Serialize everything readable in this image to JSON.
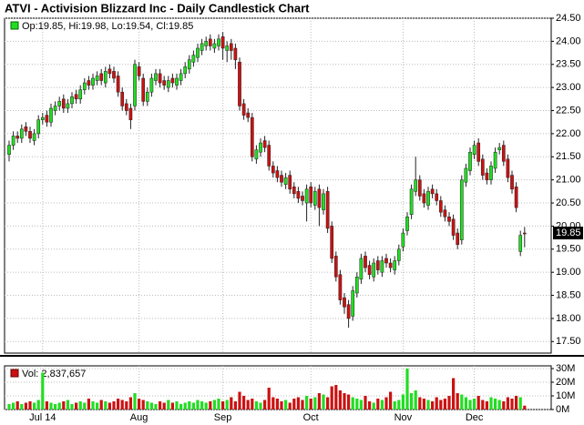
{
  "chart_data": {
    "type": "candlestick",
    "title": "ATVI - Activision Blizzard Inc - Daily Candlestick Chart",
    "legend": "Op:19.85, Hi:19.98, Lo:19.54, Cl:19.85",
    "up_color": "#22dd22",
    "down_color": "#cc1111",
    "grid": true,
    "categories": [
      null,
      null,
      null,
      null,
      null,
      null,
      null,
      null,
      "Jul 14",
      null,
      null,
      null,
      null,
      null,
      null,
      null,
      null,
      null,
      null,
      null,
      null,
      null,
      null,
      null,
      null,
      null,
      null,
      null,
      null,
      null,
      null,
      "Aug",
      null,
      null,
      null,
      null,
      null,
      null,
      null,
      null,
      null,
      null,
      null,
      null,
      null,
      null,
      null,
      null,
      null,
      null,
      null,
      "Sep",
      null,
      null,
      null,
      null,
      null,
      null,
      null,
      null,
      null,
      null,
      null,
      null,
      null,
      null,
      null,
      null,
      null,
      null,
      null,
      null,
      "Oct",
      null,
      null,
      null,
      null,
      null,
      null,
      null,
      null,
      null,
      null,
      null,
      null,
      null,
      null,
      null,
      null,
      null,
      null,
      null,
      null,
      null,
      "Nov",
      null,
      null,
      null,
      null,
      null,
      null,
      null,
      null,
      null,
      null,
      null,
      null,
      null,
      null,
      null,
      null,
      "Dec",
      null,
      null,
      null,
      null,
      null,
      null,
      null,
      null,
      null,
      null,
      null,
      null
    ],
    "open": [
      21.55,
      21.75,
      21.95,
      21.9,
      22.15,
      22.05,
      21.85,
      22.0,
      22.3,
      22.4,
      22.25,
      22.5,
      22.6,
      22.75,
      22.55,
      22.65,
      22.85,
      22.75,
      22.95,
      23.15,
      23.05,
      23.15,
      23.3,
      23.1,
      23.4,
      23.35,
      23.25,
      22.9,
      22.65,
      22.55,
      22.6,
      23.45,
      23.2,
      22.7,
      22.9,
      23.15,
      23.3,
      23.15,
      23.0,
      23.2,
      23.05,
      23.15,
      23.3,
      23.4,
      23.55,
      23.65,
      23.8,
      23.9,
      24.05,
      23.85,
      23.9,
      24.1,
      23.8,
      23.95,
      23.85,
      23.55,
      22.65,
      22.45,
      22.35,
      21.45,
      21.6,
      21.85,
      21.75,
      21.3,
      21.2,
      21.1,
      20.9,
      21.1,
      20.85,
      20.75,
      20.65,
      20.5,
      20.85,
      20.45,
      20.8,
      20.35,
      20.75,
      20.0,
      19.35,
      18.95,
      18.45,
      18.3,
      18.05,
      18.55,
      18.85,
      19.35,
      19.15,
      18.9,
      19.25,
      19.0,
      19.3,
      19.2,
      19.05,
      19.25,
      19.55,
      19.9,
      20.25,
      20.75,
      21.0,
      20.7,
      20.45,
      20.8,
      20.7,
      20.55,
      20.35,
      20.2,
      20.15,
      19.85,
      19.7,
      20.95,
      21.2,
      21.55,
      21.8,
      21.45,
      21.15,
      21.0,
      21.25,
      21.65,
      21.75,
      21.45,
      21.1,
      20.85,
      19.45,
      19.85
    ],
    "high": [
      21.85,
      22.05,
      22.05,
      22.2,
      22.25,
      22.15,
      22.1,
      22.4,
      22.45,
      22.5,
      22.65,
      22.7,
      22.8,
      22.85,
      22.75,
      22.9,
      22.95,
      23.05,
      23.2,
      23.25,
      23.3,
      23.35,
      23.4,
      23.45,
      23.5,
      23.45,
      23.35,
      23.0,
      22.75,
      22.65,
      23.6,
      23.55,
      23.3,
      23.0,
      23.3,
      23.4,
      23.4,
      23.25,
      23.25,
      23.3,
      23.3,
      23.4,
      23.55,
      23.7,
      23.8,
      23.95,
      24.05,
      24.1,
      24.15,
      24.05,
      24.15,
      24.2,
      24.0,
      24.05,
      23.95,
      23.65,
      22.75,
      22.55,
      22.45,
      21.75,
      21.9,
      21.95,
      21.85,
      21.4,
      21.3,
      21.2,
      21.15,
      21.2,
      20.95,
      20.85,
      20.75,
      20.9,
      20.95,
      20.85,
      20.9,
      20.8,
      20.85,
      20.1,
      19.45,
      19.05,
      18.55,
      18.4,
      18.7,
      19.0,
      19.4,
      19.45,
      19.25,
      19.3,
      19.35,
      19.35,
      19.4,
      19.3,
      19.35,
      19.6,
      19.95,
      20.3,
      20.9,
      21.5,
      21.1,
      20.8,
      20.85,
      20.9,
      20.8,
      20.65,
      20.45,
      20.3,
      20.25,
      19.95,
      21.1,
      21.35,
      21.7,
      21.85,
      21.9,
      21.55,
      21.25,
      21.4,
      21.7,
      21.8,
      21.85,
      21.55,
      21.2,
      20.95,
      19.9,
      19.98
    ],
    "low": [
      21.4,
      21.65,
      21.8,
      21.8,
      21.95,
      21.8,
      21.75,
      21.9,
      22.2,
      22.15,
      22.15,
      22.4,
      22.5,
      22.45,
      22.45,
      22.55,
      22.65,
      22.65,
      22.85,
      22.95,
      22.95,
      23.05,
      23.05,
      23.0,
      23.2,
      23.1,
      22.8,
      22.5,
      22.4,
      22.1,
      22.5,
      23.15,
      22.6,
      22.6,
      22.8,
      23.05,
      23.0,
      22.95,
      22.9,
      23.0,
      22.95,
      23.05,
      23.2,
      23.3,
      23.45,
      23.55,
      23.7,
      23.8,
      23.8,
      23.75,
      23.8,
      23.6,
      23.55,
      23.6,
      23.4,
      22.5,
      22.3,
      22.25,
      21.4,
      21.35,
      21.5,
      21.6,
      21.2,
      21.05,
      20.95,
      20.85,
      20.8,
      20.7,
      20.6,
      20.5,
      20.45,
      20.1,
      20.4,
      20.35,
      20.0,
      20.25,
      19.85,
      19.2,
      18.8,
      18.3,
      18.1,
      17.8,
      17.95,
      18.45,
      18.75,
      19.0,
      18.85,
      18.8,
      18.95,
      18.9,
      19.1,
      19.0,
      18.95,
      19.15,
      19.45,
      19.8,
      20.15,
      20.65,
      20.55,
      20.4,
      20.35,
      20.6,
      20.45,
      20.2,
      20.1,
      20.0,
      19.7,
      19.5,
      19.6,
      20.85,
      21.1,
      21.45,
      21.3,
      21.0,
      20.9,
      20.9,
      21.15,
      21.55,
      21.3,
      20.95,
      20.7,
      20.3,
      19.35,
      19.54
    ],
    "close": [
      21.75,
      21.95,
      21.9,
      22.1,
      22.05,
      21.9,
      22.0,
      22.3,
      22.35,
      22.25,
      22.55,
      22.6,
      22.7,
      22.55,
      22.65,
      22.8,
      22.75,
      22.95,
      23.1,
      23.05,
      23.2,
      23.25,
      23.15,
      23.35,
      23.3,
      23.2,
      22.9,
      22.6,
      22.5,
      22.3,
      23.5,
      23.25,
      22.7,
      22.9,
      23.2,
      23.3,
      23.1,
      23.05,
      23.15,
      23.1,
      23.2,
      23.3,
      23.45,
      23.6,
      23.7,
      23.85,
      23.95,
      24.0,
      23.9,
      23.95,
      24.05,
      23.85,
      23.9,
      23.8,
      23.6,
      22.6,
      22.4,
      22.35,
      21.5,
      21.65,
      21.8,
      21.7,
      21.3,
      21.15,
      21.05,
      20.95,
      21.05,
      20.8,
      20.7,
      20.6,
      20.55,
      20.8,
      20.5,
      20.75,
      20.4,
      20.7,
      19.95,
      19.3,
      18.9,
      18.4,
      18.25,
      18.0,
      18.6,
      18.9,
      19.3,
      19.1,
      18.95,
      19.2,
      19.05,
      19.25,
      19.2,
      19.1,
      19.25,
      19.5,
      19.85,
      20.2,
      20.8,
      21.0,
      20.65,
      20.5,
      20.75,
      20.7,
      20.55,
      20.3,
      20.2,
      20.1,
      19.8,
      19.6,
      21.0,
      21.25,
      21.6,
      21.75,
      21.4,
      21.1,
      21.0,
      21.3,
      21.6,
      21.7,
      21.4,
      21.05,
      20.8,
      20.4,
      19.8,
      19.85
    ],
    "ylim": [
      17.25,
      24.5
    ],
    "yticks": [
      {
        "value": 17.5,
        "label": "17.50"
      },
      {
        "value": 18,
        "label": "18.00"
      },
      {
        "value": 18.5,
        "label": "18.50"
      },
      {
        "value": 19,
        "label": "19.00"
      },
      {
        "value": 19.5,
        "label": "19.50"
      },
      {
        "value": 20,
        "label": "20.00"
      },
      {
        "value": 20.5,
        "label": "20.50"
      },
      {
        "value": 21,
        "label": "21.00"
      },
      {
        "value": 21.5,
        "label": "21.50"
      },
      {
        "value": 22,
        "label": "22.00"
      },
      {
        "value": 22.5,
        "label": "22.50"
      },
      {
        "value": 23,
        "label": "23.00"
      },
      {
        "value": 23.5,
        "label": "23.50"
      },
      {
        "value": 24,
        "label": "24.00"
      },
      {
        "value": 24.5,
        "label": "24.50"
      }
    ],
    "volume": {
      "legend": "Vol: 2,837,657",
      "values": [
        4,
        5,
        6,
        4,
        5,
        6,
        5,
        7,
        27,
        6,
        5,
        4,
        5,
        6,
        7,
        4,
        5,
        6,
        5,
        8,
        6,
        5,
        7,
        6,
        5,
        6,
        8,
        7,
        6,
        9,
        12,
        8,
        7,
        6,
        5,
        4,
        6,
        5,
        7,
        5,
        6,
        4,
        5,
        6,
        5,
        7,
        6,
        5,
        6,
        7,
        8,
        6,
        7,
        9,
        6,
        13,
        10,
        7,
        8,
        6,
        5,
        7,
        16,
        9,
        8,
        6,
        7,
        5,
        8,
        9,
        7,
        10,
        8,
        9,
        12,
        11,
        9,
        17,
        18,
        14,
        12,
        11,
        9,
        8,
        7,
        10,
        6,
        5,
        8,
        7,
        9,
        13,
        6,
        7,
        11,
        30,
        12,
        14,
        9,
        8,
        7,
        6,
        9,
        7,
        8,
        10,
        23,
        12,
        11,
        9,
        7,
        8,
        10,
        7,
        6,
        9,
        8,
        7,
        6,
        9,
        8,
        10,
        9,
        2.84
      ],
      "ylim": [
        0,
        32
      ],
      "yticks": [
        {
          "value": 0,
          "label": "0M"
        },
        {
          "value": 10,
          "label": "10M"
        },
        {
          "value": 20,
          "label": "20M"
        },
        {
          "value": 30,
          "label": "30M"
        }
      ]
    }
  }
}
